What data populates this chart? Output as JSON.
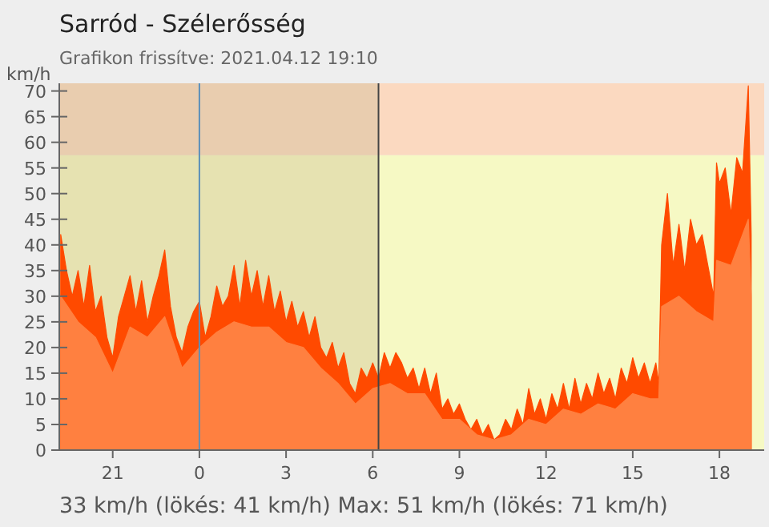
{
  "chart_data": {
    "type": "area",
    "title": "Sarród - Szélerősség",
    "subtitle": "Grafikon frissítve: 2021.04.12 19:10",
    "ylabel": "km/h",
    "annotations": [
      "33 km/h  (lökés: 41 km/h)  Max: 51 km/h (lökés: 71 km/h)"
    ],
    "xlim": [
      "2021-04-11T19:09",
      "2021-04-12T19:33"
    ],
    "xticks": [
      {
        "value": "2021-04-11T21:00",
        "label": "21"
      },
      {
        "value": "2021-04-12T00:00",
        "label": "0"
      },
      {
        "value": "2021-04-12T03:00",
        "label": "3"
      },
      {
        "value": "2021-04-12T06:00",
        "label": "6"
      },
      {
        "value": "2021-04-12T09:00",
        "label": "9"
      },
      {
        "value": "2021-04-12T12:00",
        "label": "12"
      },
      {
        "value": "2021-04-12T15:00",
        "label": "15"
      },
      {
        "value": "2021-04-12T18:00",
        "label": "18"
      }
    ],
    "ylim": [
      0,
      71.5
    ],
    "yticks": [
      0,
      5,
      10,
      15,
      20,
      25,
      30,
      35,
      40,
      45,
      50,
      55,
      60,
      65,
      70
    ],
    "grid": false,
    "bands": [
      {
        "axis": "y",
        "from": 0,
        "to": 57.5,
        "color": "#f6f9c4"
      },
      {
        "axis": "y",
        "from": 57.5,
        "to": 71.5,
        "color": "#fbd9c0"
      },
      {
        "axis": "x",
        "from": "2021-04-11T19:09",
        "to": "2021-04-12T06:12",
        "color": "#c8b890"
      }
    ],
    "ref_lines": [
      {
        "axis": "x",
        "value": "2021-04-12T00:00",
        "color": "#5b8fb9"
      },
      {
        "axis": "x",
        "value": "2021-04-12T06:12",
        "color": "#444444"
      }
    ],
    "series": [
      {
        "color": "#ff4a00",
        "x": [
          "2021-04-11T19:12",
          "2021-04-11T19:24",
          "2021-04-11T19:36",
          "2021-04-11T19:48",
          "2021-04-11T20:00",
          "2021-04-11T20:12",
          "2021-04-11T20:24",
          "2021-04-11T20:36",
          "2021-04-11T20:48",
          "2021-04-11T21:00",
          "2021-04-11T21:12",
          "2021-04-11T21:24",
          "2021-04-11T21:36",
          "2021-04-11T21:48",
          "2021-04-11T22:00",
          "2021-04-11T22:12",
          "2021-04-11T22:24",
          "2021-04-11T22:36",
          "2021-04-11T22:48",
          "2021-04-11T23:00",
          "2021-04-11T23:12",
          "2021-04-11T23:24",
          "2021-04-11T23:36",
          "2021-04-11T23:48",
          "2021-04-12T00:00",
          "2021-04-12T00:12",
          "2021-04-12T00:24",
          "2021-04-12T00:36",
          "2021-04-12T00:48",
          "2021-04-12T01:00",
          "2021-04-12T01:12",
          "2021-04-12T01:24",
          "2021-04-12T01:36",
          "2021-04-12T01:48",
          "2021-04-12T02:00",
          "2021-04-12T02:12",
          "2021-04-12T02:24",
          "2021-04-12T02:36",
          "2021-04-12T02:48",
          "2021-04-12T03:00",
          "2021-04-12T03:12",
          "2021-04-12T03:24",
          "2021-04-12T03:36",
          "2021-04-12T03:48",
          "2021-04-12T04:00",
          "2021-04-12T04:12",
          "2021-04-12T04:24",
          "2021-04-12T04:36",
          "2021-04-12T04:48",
          "2021-04-12T05:00",
          "2021-04-12T05:12",
          "2021-04-12T05:24",
          "2021-04-12T05:36",
          "2021-04-12T05:48",
          "2021-04-12T06:00",
          "2021-04-12T06:12",
          "2021-04-12T06:24",
          "2021-04-12T06:36",
          "2021-04-12T06:48",
          "2021-04-12T07:00",
          "2021-04-12T07:12",
          "2021-04-12T07:24",
          "2021-04-12T07:36",
          "2021-04-12T07:48",
          "2021-04-12T08:00",
          "2021-04-12T08:12",
          "2021-04-12T08:24",
          "2021-04-12T08:36",
          "2021-04-12T08:48",
          "2021-04-12T09:00",
          "2021-04-12T09:12",
          "2021-04-12T09:24",
          "2021-04-12T09:36",
          "2021-04-12T09:48",
          "2021-04-12T10:00",
          "2021-04-12T10:12",
          "2021-04-12T10:24",
          "2021-04-12T10:36",
          "2021-04-12T10:48",
          "2021-04-12T11:00",
          "2021-04-12T11:12",
          "2021-04-12T11:24",
          "2021-04-12T11:36",
          "2021-04-12T11:48",
          "2021-04-12T12:00",
          "2021-04-12T12:12",
          "2021-04-12T12:24",
          "2021-04-12T12:36",
          "2021-04-12T12:48",
          "2021-04-12T13:00",
          "2021-04-12T13:12",
          "2021-04-12T13:24",
          "2021-04-12T13:36",
          "2021-04-12T13:48",
          "2021-04-12T14:00",
          "2021-04-12T14:12",
          "2021-04-12T14:24",
          "2021-04-12T14:36",
          "2021-04-12T14:48",
          "2021-04-12T15:00",
          "2021-04-12T15:12",
          "2021-04-12T15:24",
          "2021-04-12T15:36",
          "2021-04-12T15:48",
          "2021-04-12T15:54",
          "2021-04-12T16:00",
          "2021-04-12T16:12",
          "2021-04-12T16:24",
          "2021-04-12T16:36",
          "2021-04-12T16:48",
          "2021-04-12T17:00",
          "2021-04-12T17:12",
          "2021-04-12T17:24",
          "2021-04-12T17:36",
          "2021-04-12T17:48",
          "2021-04-12T17:54",
          "2021-04-12T18:00",
          "2021-04-12T18:12",
          "2021-04-12T18:24",
          "2021-04-12T18:36",
          "2021-04-12T18:48",
          "2021-04-12T19:00",
          "2021-04-12T19:06"
        ],
        "values": [
          42,
          35,
          30,
          35,
          28,
          36,
          27,
          30,
          22,
          18,
          26,
          30,
          34,
          27,
          33,
          25,
          30,
          34,
          39,
          28,
          22,
          19,
          24,
          27,
          29,
          22,
          26,
          32,
          28,
          30,
          36,
          28,
          37,
          30,
          35,
          28,
          34,
          27,
          31,
          25,
          29,
          24,
          27,
          22,
          26,
          20,
          18,
          21,
          16,
          19,
          13,
          11,
          16,
          14,
          17,
          14,
          19,
          16,
          19,
          17,
          14,
          16,
          12,
          16,
          11,
          15,
          8,
          10,
          7,
          9,
          6,
          4,
          6,
          3,
          5,
          2,
          3,
          6,
          4,
          8,
          5,
          12,
          7,
          10,
          6,
          11,
          8,
          13,
          8,
          14,
          9,
          13,
          10,
          15,
          11,
          14,
          10,
          16,
          13,
          18,
          14,
          17,
          13,
          17,
          13,
          40,
          50,
          36,
          44,
          35,
          45,
          40,
          42,
          36,
          30,
          56,
          52,
          55,
          46,
          57,
          54,
          71,
          42
        ]
      },
      {
        "color": "#ff8040",
        "x": [
          "2021-04-11T19:12",
          "2021-04-11T19:48",
          "2021-04-11T20:24",
          "2021-04-11T21:00",
          "2021-04-11T21:36",
          "2021-04-11T22:12",
          "2021-04-11T22:48",
          "2021-04-11T23:24",
          "2021-04-12T00:00",
          "2021-04-12T00:36",
          "2021-04-12T01:12",
          "2021-04-12T01:48",
          "2021-04-12T02:24",
          "2021-04-12T03:00",
          "2021-04-12T03:36",
          "2021-04-12T04:12",
          "2021-04-12T04:48",
          "2021-04-12T05:24",
          "2021-04-12T06:00",
          "2021-04-12T06:36",
          "2021-04-12T07:12",
          "2021-04-12T07:48",
          "2021-04-12T08:24",
          "2021-04-12T09:00",
          "2021-04-12T09:36",
          "2021-04-12T10:12",
          "2021-04-12T10:48",
          "2021-04-12T11:24",
          "2021-04-12T12:00",
          "2021-04-12T12:36",
          "2021-04-12T13:12",
          "2021-04-12T13:48",
          "2021-04-12T14:24",
          "2021-04-12T15:00",
          "2021-04-12T15:36",
          "2021-04-12T15:54",
          "2021-04-12T16:00",
          "2021-04-12T16:36",
          "2021-04-12T17:12",
          "2021-04-12T17:48",
          "2021-04-12T17:54",
          "2021-04-12T18:24",
          "2021-04-12T19:00",
          "2021-04-12T19:06"
        ],
        "values": [
          30,
          25,
          22,
          15,
          24,
          22,
          26,
          16,
          20,
          23,
          25,
          24,
          24,
          21,
          20,
          16,
          13,
          9,
          12,
          13,
          11,
          11,
          6,
          6,
          3,
          2,
          3,
          6,
          5,
          8,
          7,
          9,
          8,
          11,
          10,
          10,
          28,
          30,
          27,
          25,
          37,
          36,
          45,
          30
        ]
      }
    ]
  }
}
